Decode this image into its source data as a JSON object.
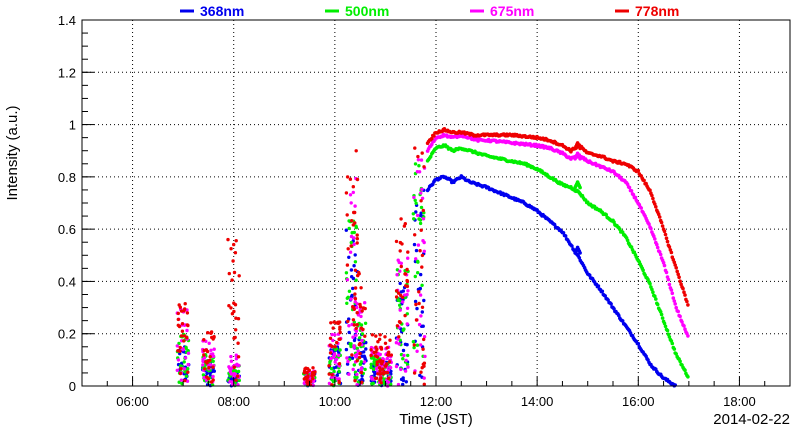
{
  "chart_data": {
    "type": "scatter",
    "xlabel": "Time (JST)",
    "ylabel": "Intensity (a.u.)",
    "date_label": "2014-02-22",
    "xlim": [
      "05:00",
      "19:00"
    ],
    "ylim": [
      0,
      1.4
    ],
    "x_ticks": [
      "06:00",
      "08:00",
      "10:00",
      "12:00",
      "14:00",
      "16:00",
      "18:00"
    ],
    "y_ticks": [
      "0",
      "0.2",
      "0.4",
      "0.6",
      "0.8",
      "1",
      "1.2",
      "1.4"
    ],
    "grid": true,
    "legend_position": "top",
    "series": [
      {
        "name": "368nm",
        "color": "#0000ee",
        "smooth": [
          [
            "11:50",
            0.75
          ],
          [
            "12:00",
            0.79
          ],
          [
            "12:10",
            0.8
          ],
          [
            "12:20",
            0.78
          ],
          [
            "12:30",
            0.8
          ],
          [
            "12:40",
            0.78
          ],
          [
            "12:50",
            0.77
          ],
          [
            "13:00",
            0.76
          ],
          [
            "13:15",
            0.74
          ],
          [
            "13:30",
            0.72
          ],
          [
            "13:45",
            0.7
          ],
          [
            "14:00",
            0.67
          ],
          [
            "14:15",
            0.63
          ],
          [
            "14:30",
            0.59
          ],
          [
            "14:40",
            0.54
          ],
          [
            "14:50",
            0.49
          ],
          [
            "15:00",
            0.43
          ],
          [
            "15:15",
            0.37
          ],
          [
            "15:30",
            0.3
          ],
          [
            "15:45",
            0.23
          ],
          [
            "16:00",
            0.16
          ],
          [
            "16:15",
            0.08
          ],
          [
            "16:30",
            0.03
          ],
          [
            "16:45",
            0.0
          ]
        ],
        "bump": [
          "14:48",
          0.53
        ],
        "noise": [
          [
            "07:00",
            0.15
          ],
          [
            "07:30",
            0.1
          ],
          [
            "08:00",
            0.05
          ],
          [
            "09:30",
            0.05
          ],
          [
            "10:00",
            0.15
          ],
          [
            "10:20",
            0.6
          ],
          [
            "10:30",
            0.2
          ],
          [
            "10:50",
            0.1
          ],
          [
            "11:00",
            0.1
          ],
          [
            "11:20",
            0.4
          ],
          [
            "11:40",
            0.75
          ]
        ]
      },
      {
        "name": "500nm",
        "color": "#00ee00",
        "smooth": [
          [
            "11:50",
            0.86
          ],
          [
            "12:00",
            0.91
          ],
          [
            "12:10",
            0.92
          ],
          [
            "12:20",
            0.9
          ],
          [
            "12:30",
            0.91
          ],
          [
            "12:40",
            0.9
          ],
          [
            "12:50",
            0.89
          ],
          [
            "13:00",
            0.88
          ],
          [
            "13:15",
            0.87
          ],
          [
            "13:30",
            0.86
          ],
          [
            "13:45",
            0.85
          ],
          [
            "14:00",
            0.83
          ],
          [
            "14:15",
            0.8
          ],
          [
            "14:30",
            0.77
          ],
          [
            "14:40",
            0.76
          ],
          [
            "14:50",
            0.74
          ],
          [
            "15:00",
            0.7
          ],
          [
            "15:15",
            0.67
          ],
          [
            "15:30",
            0.63
          ],
          [
            "15:45",
            0.57
          ],
          [
            "16:00",
            0.48
          ],
          [
            "16:15",
            0.38
          ],
          [
            "16:30",
            0.25
          ],
          [
            "16:45",
            0.12
          ],
          [
            "17:00",
            0.03
          ]
        ],
        "bump": [
          "14:48",
          0.78
        ],
        "noise": [
          [
            "07:00",
            0.2
          ],
          [
            "07:30",
            0.12
          ],
          [
            "08:00",
            0.08
          ],
          [
            "09:30",
            0.05
          ],
          [
            "10:00",
            0.15
          ],
          [
            "10:20",
            0.65
          ],
          [
            "10:30",
            0.25
          ],
          [
            "10:50",
            0.12
          ],
          [
            "11:00",
            0.1
          ],
          [
            "11:20",
            0.45
          ],
          [
            "11:40",
            0.85
          ]
        ]
      },
      {
        "name": "675nm",
        "color": "#ff00ff",
        "smooth": [
          [
            "11:50",
            0.9
          ],
          [
            "12:00",
            0.95
          ],
          [
            "12:10",
            0.96
          ],
          [
            "12:20",
            0.95
          ],
          [
            "12:30",
            0.96
          ],
          [
            "12:40",
            0.95
          ],
          [
            "12:50",
            0.94
          ],
          [
            "13:00",
            0.94
          ],
          [
            "13:30",
            0.93
          ],
          [
            "14:00",
            0.92
          ],
          [
            "14:15",
            0.91
          ],
          [
            "14:30",
            0.89
          ],
          [
            "14:40",
            0.87
          ],
          [
            "14:50",
            0.88
          ],
          [
            "15:00",
            0.86
          ],
          [
            "15:15",
            0.84
          ],
          [
            "15:30",
            0.82
          ],
          [
            "15:45",
            0.78
          ],
          [
            "16:00",
            0.7
          ],
          [
            "16:15",
            0.6
          ],
          [
            "16:30",
            0.47
          ],
          [
            "16:45",
            0.3
          ],
          [
            "17:00",
            0.18
          ]
        ],
        "bump": [
          "14:48",
          0.89
        ],
        "noise": [
          [
            "07:00",
            0.3
          ],
          [
            "07:30",
            0.18
          ],
          [
            "08:00",
            0.12
          ],
          [
            "09:30",
            0.06
          ],
          [
            "10:00",
            0.2
          ],
          [
            "10:20",
            0.8
          ],
          [
            "10:30",
            0.35
          ],
          [
            "10:50",
            0.15
          ],
          [
            "11:00",
            0.15
          ],
          [
            "11:20",
            0.55
          ],
          [
            "11:40",
            0.9
          ]
        ]
      },
      {
        "name": "778nm",
        "color": "#ee0000",
        "smooth": [
          [
            "11:50",
            0.93
          ],
          [
            "12:00",
            0.97
          ],
          [
            "12:10",
            0.98
          ],
          [
            "12:20",
            0.97
          ],
          [
            "12:30",
            0.97
          ],
          [
            "12:45",
            0.96
          ],
          [
            "13:00",
            0.96
          ],
          [
            "13:30",
            0.96
          ],
          [
            "14:00",
            0.95
          ],
          [
            "14:15",
            0.94
          ],
          [
            "14:30",
            0.92
          ],
          [
            "14:40",
            0.9
          ],
          [
            "14:50",
            0.92
          ],
          [
            "15:00",
            0.89
          ],
          [
            "15:15",
            0.88
          ],
          [
            "15:30",
            0.86
          ],
          [
            "15:45",
            0.85
          ],
          [
            "16:00",
            0.82
          ],
          [
            "16:15",
            0.74
          ],
          [
            "16:30",
            0.6
          ],
          [
            "16:45",
            0.45
          ],
          [
            "17:00",
            0.3
          ]
        ],
        "bump": [
          "14:48",
          0.93
        ],
        "noise": [
          [
            "07:00",
            0.33
          ],
          [
            "07:30",
            0.21
          ],
          [
            "08:00",
            0.58
          ],
          [
            "09:30",
            0.07
          ],
          [
            "10:00",
            0.25
          ],
          [
            "10:20",
            0.9
          ],
          [
            "10:30",
            0.45
          ],
          [
            "10:50",
            0.2
          ],
          [
            "11:00",
            0.2
          ],
          [
            "11:20",
            0.65
          ],
          [
            "11:40",
            0.95
          ]
        ]
      }
    ]
  }
}
